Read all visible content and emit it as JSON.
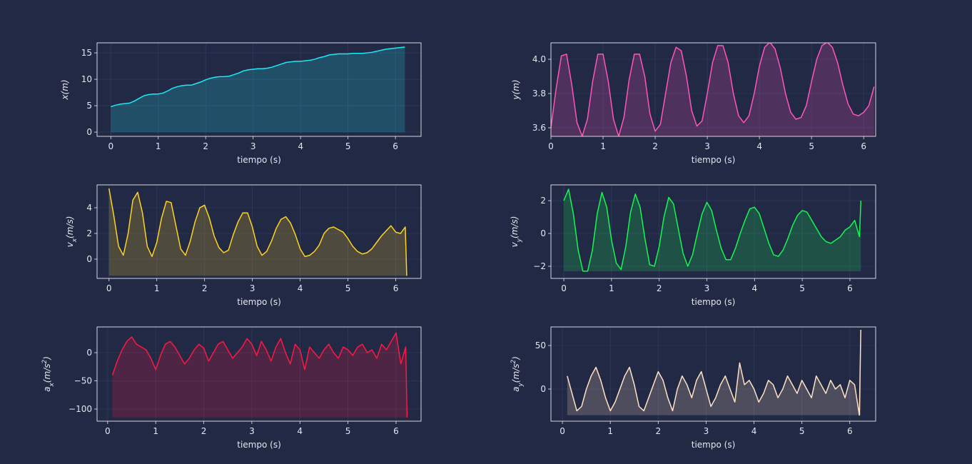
{
  "chart_data": [
    {
      "type": "line",
      "xlabel": "tiempo (s)",
      "ylabel": [
        {
          "text": "x(m)"
        }
      ],
      "color": "#1de9f6",
      "fill_base": 0,
      "x": [
        0,
        0.1,
        0.2,
        0.3,
        0.4,
        0.5,
        0.6,
        0.7,
        0.8,
        0.9,
        1.0,
        1.1,
        1.2,
        1.3,
        1.4,
        1.5,
        1.6,
        1.7,
        1.8,
        1.9,
        2.0,
        2.1,
        2.2,
        2.3,
        2.4,
        2.5,
        2.6,
        2.7,
        2.8,
        2.9,
        3.0,
        3.1,
        3.2,
        3.3,
        3.4,
        3.5,
        3.6,
        3.7,
        3.8,
        3.9,
        4.0,
        4.1,
        4.2,
        4.3,
        4.4,
        4.5,
        4.6,
        4.7,
        4.8,
        4.9,
        5.0,
        5.1,
        5.2,
        5.3,
        5.4,
        5.5,
        5.6,
        5.7,
        5.8,
        5.9,
        6.0,
        6.1,
        6.2
      ],
      "values": [
        4.8,
        5.1,
        5.3,
        5.4,
        5.5,
        5.9,
        6.4,
        6.9,
        7.1,
        7.2,
        7.2,
        7.4,
        7.8,
        8.3,
        8.6,
        8.8,
        8.9,
        8.9,
        9.2,
        9.5,
        9.9,
        10.2,
        10.4,
        10.5,
        10.5,
        10.6,
        10.9,
        11.2,
        11.6,
        11.8,
        11.9,
        12.0,
        12.0,
        12.1,
        12.3,
        12.6,
        12.9,
        13.2,
        13.3,
        13.4,
        13.4,
        13.5,
        13.6,
        13.8,
        14.1,
        14.3,
        14.6,
        14.7,
        14.8,
        14.8,
        14.8,
        14.9,
        14.9,
        14.9,
        15.0,
        15.1,
        15.3,
        15.5,
        15.7,
        15.8,
        15.9,
        16.0,
        16.1
      ],
      "xlim": [
        -0.29,
        6.54
      ],
      "xticks": [
        0,
        1,
        2,
        3,
        4,
        5,
        6
      ],
      "ylim": [
        -0.8,
        16.9
      ],
      "yticks": [
        0,
        5,
        10,
        15
      ],
      "grid": true
    },
    {
      "type": "line",
      "xlabel": "tiempo (s)",
      "ylabel": [
        {
          "text": "y(m)"
        }
      ],
      "color": "#ff55b8",
      "x": [
        0,
        0.1,
        0.2,
        0.3,
        0.4,
        0.5,
        0.6,
        0.7,
        0.8,
        0.9,
        1.0,
        1.1,
        1.2,
        1.3,
        1.4,
        1.5,
        1.6,
        1.7,
        1.8,
        1.9,
        2.0,
        2.1,
        2.2,
        2.3,
        2.4,
        2.5,
        2.6,
        2.7,
        2.8,
        2.9,
        3.0,
        3.1,
        3.2,
        3.3,
        3.4,
        3.5,
        3.6,
        3.7,
        3.8,
        3.9,
        4.0,
        4.1,
        4.2,
        4.3,
        4.4,
        4.5,
        4.6,
        4.7,
        4.8,
        4.9,
        5.0,
        5.1,
        5.2,
        5.3,
        5.4,
        5.5,
        5.6,
        5.7,
        5.8,
        5.9,
        6.0,
        6.1,
        6.2
      ],
      "values": [
        3.6,
        3.83,
        4.02,
        4.03,
        3.85,
        3.63,
        3.55,
        3.65,
        3.87,
        4.03,
        4.03,
        3.87,
        3.65,
        3.55,
        3.66,
        3.88,
        4.03,
        4.03,
        3.9,
        3.68,
        3.58,
        3.62,
        3.8,
        3.98,
        4.07,
        4.05,
        3.9,
        3.7,
        3.61,
        3.64,
        3.8,
        3.98,
        4.08,
        4.08,
        3.98,
        3.8,
        3.67,
        3.63,
        3.67,
        3.8,
        3.96,
        4.07,
        4.1,
        4.06,
        3.95,
        3.8,
        3.69,
        3.65,
        3.66,
        3.73,
        3.87,
        4.0,
        4.08,
        4.1,
        4.07,
        3.98,
        3.85,
        3.74,
        3.68,
        3.67,
        3.69,
        3.73,
        3.84
      ],
      "xlim": [
        0,
        6.23
      ],
      "xticks": [
        0,
        1,
        2,
        3,
        4,
        5,
        6
      ],
      "ylim": [
        3.55,
        4.096
      ],
      "yticks": [
        3.6,
        3.8,
        {
          "value": 4,
          "label": "4.0"
        }
      ],
      "grid": true
    },
    {
      "type": "line",
      "xlabel": "tiempo (s)",
      "ylabel": [
        {
          "text": "v"
        },
        {
          "text": "x",
          "sub": true
        },
        {
          "text": "(m/s)"
        }
      ],
      "color": "#ffd21f",
      "x": [
        0,
        0.1,
        0.2,
        0.3,
        0.4,
        0.5,
        0.6,
        0.7,
        0.8,
        0.9,
        1.0,
        1.1,
        1.2,
        1.3,
        1.4,
        1.5,
        1.6,
        1.7,
        1.8,
        1.9,
        2.0,
        2.1,
        2.2,
        2.3,
        2.4,
        2.5,
        2.6,
        2.7,
        2.8,
        2.9,
        3.0,
        3.1,
        3.2,
        3.3,
        3.4,
        3.5,
        3.6,
        3.7,
        3.8,
        3.9,
        4.0,
        4.1,
        4.2,
        4.3,
        4.4,
        4.5,
        4.6,
        4.7,
        4.8,
        4.9,
        5.0,
        5.1,
        5.2,
        5.3,
        5.4,
        5.5,
        5.6,
        5.7,
        5.8,
        5.9,
        6.0,
        6.1,
        6.2,
        6.23
      ],
      "values": [
        5.5,
        3.4,
        1.0,
        0.3,
        2.0,
        4.6,
        5.2,
        3.6,
        1.0,
        0.2,
        1.3,
        3.2,
        4.5,
        4.4,
        2.6,
        0.8,
        0.3,
        1.4,
        2.9,
        4.0,
        4.2,
        3.2,
        1.8,
        0.9,
        0.5,
        0.7,
        1.9,
        2.9,
        3.6,
        3.6,
        2.5,
        1.0,
        0.3,
        0.6,
        1.4,
        2.4,
        3.1,
        3.3,
        2.8,
        1.9,
        0.8,
        0.2,
        0.3,
        0.6,
        1.1,
        2.0,
        2.4,
        2.5,
        2.3,
        2.1,
        1.6,
        1.0,
        0.6,
        0.4,
        0.5,
        0.8,
        1.3,
        1.8,
        2.2,
        2.6,
        2.1,
        2.0,
        2.5,
        -1.3
      ],
      "xlim": [
        -0.25,
        6.53
      ],
      "xticks": [
        0,
        1,
        2,
        3,
        4,
        5,
        6
      ],
      "ylim": [
        -1.5,
        5.78
      ],
      "yticks": [
        0,
        2,
        4
      ],
      "grid": true
    },
    {
      "type": "line",
      "xlabel": "tiempo (s)",
      "ylabel": [
        {
          "text": "v"
        },
        {
          "text": "y",
          "sub": true
        },
        {
          "text": "(m/s)"
        }
      ],
      "color": "#14f74f",
      "x": [
        0,
        0.1,
        0.2,
        0.3,
        0.4,
        0.5,
        0.6,
        0.7,
        0.8,
        0.9,
        1.0,
        1.1,
        1.2,
        1.3,
        1.4,
        1.5,
        1.6,
        1.7,
        1.8,
        1.9,
        2.0,
        2.1,
        2.2,
        2.3,
        2.4,
        2.5,
        2.6,
        2.7,
        2.8,
        2.9,
        3.0,
        3.1,
        3.2,
        3.3,
        3.4,
        3.5,
        3.6,
        3.7,
        3.8,
        3.9,
        4.0,
        4.1,
        4.2,
        4.3,
        4.4,
        4.5,
        4.6,
        4.7,
        4.8,
        4.9,
        5.0,
        5.1,
        5.2,
        5.3,
        5.4,
        5.5,
        5.6,
        5.7,
        5.8,
        5.9,
        6.0,
        6.1,
        6.2,
        6.23
      ],
      "values": [
        2.0,
        2.7,
        1.2,
        -1.0,
        -2.3,
        -2.3,
        -1.0,
        1.2,
        2.5,
        1.6,
        -0.4,
        -1.8,
        -2.2,
        -0.8,
        1.3,
        2.4,
        1.6,
        -0.3,
        -1.9,
        -2.0,
        -0.8,
        1.0,
        2.2,
        1.8,
        0.3,
        -1.2,
        -2.0,
        -1.3,
        0.0,
        1.2,
        1.9,
        1.4,
        0.2,
        -0.9,
        -1.6,
        -1.6,
        -0.9,
        0.0,
        0.8,
        1.5,
        1.6,
        1.2,
        0.3,
        -0.6,
        -1.3,
        -1.4,
        -1.0,
        -0.3,
        0.5,
        1.1,
        1.4,
        1.3,
        0.8,
        0.3,
        -0.2,
        -0.5,
        -0.6,
        -0.4,
        -0.2,
        0.2,
        0.4,
        0.8,
        -0.2,
        2.0
      ],
      "xlim": [
        -0.27,
        6.54
      ],
      "xticks": [
        0,
        1,
        2,
        3,
        4,
        5,
        6
      ],
      "ylim": [
        -2.74,
        2.96
      ],
      "yticks": [
        {
          "value": -2,
          "label": "−2"
        },
        0,
        2
      ],
      "grid": true
    },
    {
      "type": "line",
      "xlabel": "tiempo (s)",
      "ylabel": [
        {
          "text": "a"
        },
        {
          "text": "x",
          "sub": true
        },
        {
          "text": "(m/s"
        },
        {
          "text": "2",
          "sup": true
        },
        {
          "text": ")"
        }
      ],
      "color": "#ff1744",
      "x": [
        0.1,
        0.2,
        0.3,
        0.4,
        0.5,
        0.6,
        0.7,
        0.8,
        0.9,
        1.0,
        1.1,
        1.2,
        1.3,
        1.4,
        1.5,
        1.6,
        1.7,
        1.8,
        1.9,
        2.0,
        2.1,
        2.2,
        2.3,
        2.4,
        2.5,
        2.6,
        2.7,
        2.8,
        2.9,
        3.0,
        3.1,
        3.2,
        3.3,
        3.4,
        3.5,
        3.6,
        3.7,
        3.8,
        3.9,
        4.0,
        4.1,
        4.2,
        4.3,
        4.4,
        4.5,
        4.6,
        4.7,
        4.8,
        4.9,
        5.0,
        5.1,
        5.2,
        5.3,
        5.4,
        5.5,
        5.6,
        5.7,
        5.8,
        5.9,
        6.0,
        6.1,
        6.2,
        6.23
      ],
      "values": [
        -40,
        -15,
        5,
        20,
        28,
        15,
        10,
        5,
        -10,
        -30,
        -5,
        15,
        20,
        10,
        -5,
        -20,
        -10,
        5,
        15,
        8,
        -15,
        0,
        15,
        20,
        5,
        -10,
        0,
        10,
        25,
        15,
        -5,
        20,
        5,
        -15,
        10,
        25,
        0,
        -20,
        15,
        5,
        -30,
        10,
        0,
        -10,
        5,
        15,
        0,
        -10,
        10,
        5,
        -5,
        10,
        15,
        0,
        5,
        -10,
        15,
        5,
        20,
        35,
        -20,
        10,
        -115
      ],
      "xlim": [
        -0.22,
        6.52
      ],
      "xticks": [
        0,
        1,
        2,
        3,
        4,
        5,
        6
      ],
      "ylim": [
        -121.5,
        45.6
      ],
      "yticks": [
        {
          "value": -100,
          "label": "−100"
        },
        {
          "value": -50,
          "label": "−50"
        },
        0
      ],
      "grid": true
    },
    {
      "type": "line",
      "xlabel": "tiempo (s)",
      "ylabel": [
        {
          "text": "a"
        },
        {
          "text": "y",
          "sub": true
        },
        {
          "text": "(m/s"
        },
        {
          "text": "2",
          "sup": true
        },
        {
          "text": ")"
        }
      ],
      "color": "#ffe2c4",
      "x": [
        0.1,
        0.2,
        0.3,
        0.4,
        0.5,
        0.6,
        0.7,
        0.8,
        0.9,
        1.0,
        1.1,
        1.2,
        1.3,
        1.4,
        1.5,
        1.6,
        1.7,
        1.8,
        1.9,
        2.0,
        2.1,
        2.2,
        2.3,
        2.4,
        2.5,
        2.6,
        2.7,
        2.8,
        2.9,
        3.0,
        3.1,
        3.2,
        3.3,
        3.4,
        3.5,
        3.6,
        3.7,
        3.8,
        3.9,
        4.0,
        4.1,
        4.2,
        4.3,
        4.4,
        4.5,
        4.6,
        4.7,
        4.8,
        4.9,
        5.0,
        5.1,
        5.2,
        5.3,
        5.4,
        5.5,
        5.6,
        5.7,
        5.8,
        5.9,
        6.0,
        6.1,
        6.2,
        6.23
      ],
      "values": [
        15,
        -5,
        -25,
        -20,
        0,
        15,
        25,
        10,
        -10,
        -25,
        -15,
        0,
        15,
        25,
        5,
        -20,
        -25,
        -10,
        5,
        20,
        10,
        -10,
        -25,
        0,
        15,
        5,
        -10,
        10,
        20,
        0,
        -20,
        -10,
        5,
        15,
        0,
        -15,
        30,
        5,
        10,
        0,
        -15,
        -5,
        10,
        5,
        -10,
        0,
        15,
        5,
        -5,
        10,
        0,
        -10,
        15,
        5,
        -5,
        10,
        0,
        5,
        -10,
        10,
        5,
        -30,
        68
      ],
      "xlim": [
        -0.24,
        6.54
      ],
      "xticks": [
        0,
        1,
        2,
        3,
        4,
        5,
        6
      ],
      "ylim": [
        -36.9,
        71.3
      ],
      "yticks": [
        0,
        50
      ],
      "grid": true
    }
  ]
}
